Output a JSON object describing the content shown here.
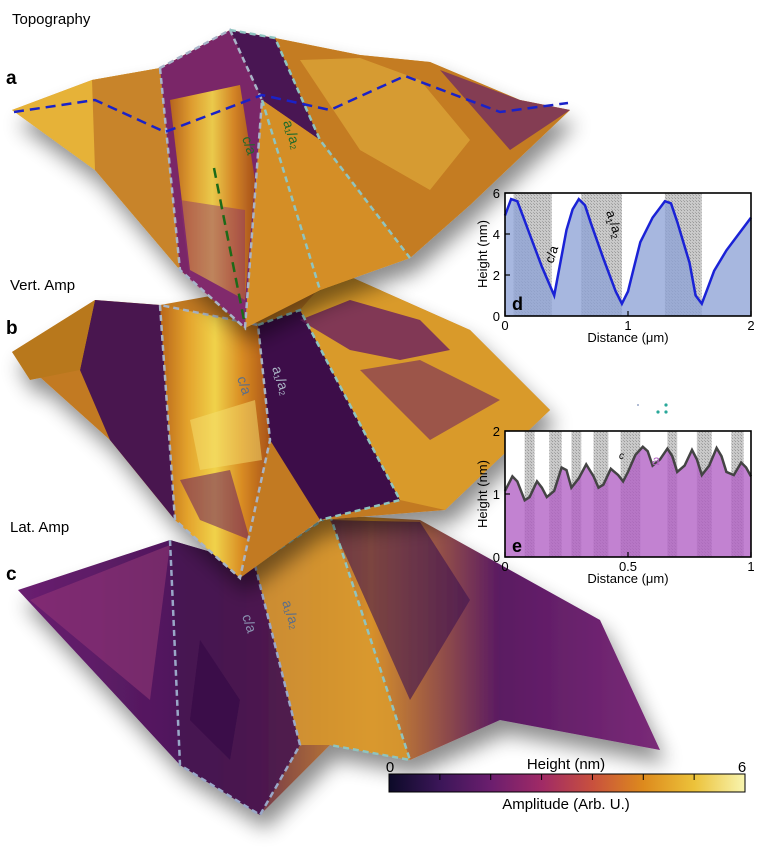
{
  "panels": {
    "a": {
      "letter": "a",
      "title": "Topography",
      "domain_ca": "c/a",
      "domain_a1a2": "a₁/a₂"
    },
    "b": {
      "letter": "b",
      "title": "Vert. Amp",
      "domain_ca": "c/a",
      "domain_a1a2": "a₁/a₂"
    },
    "c": {
      "letter": "c",
      "title": "Lat. Amp",
      "domain_ca": "c/a",
      "domain_a1a2": "a₁/a₂"
    }
  },
  "colorbar": {
    "title": "Height (nm)",
    "subtitle": "Amplitude (Arb. U.)",
    "min_label": "0",
    "max_label": "6",
    "colors": [
      "#0c0a28",
      "#3b1658",
      "#6b1e6e",
      "#a02a66",
      "#c8503e",
      "#dd8a1d",
      "#ecc23a",
      "#f8f5b0"
    ]
  },
  "chart_data": [
    {
      "type": "line",
      "panel_letter": "d",
      "xlabel": "Distance (μm)",
      "ylabel": "Height (nm)",
      "xlim": [
        0,
        2
      ],
      "ylim": [
        0,
        6
      ],
      "xticks": [
        "0",
        "1",
        "2"
      ],
      "yticks": [
        "0",
        "2",
        "4",
        "6"
      ],
      "label_ca": "c/a",
      "label_a": "a",
      "label_sub1": "1",
      "label_sub2": "2",
      "label_sep": "/",
      "line_color": "#1a22d6",
      "fill_color": "#8ea3d6",
      "x": [
        0.0,
        0.05,
        0.1,
        0.15,
        0.2,
        0.3,
        0.4,
        0.5,
        0.55,
        0.6,
        0.65,
        0.7,
        0.8,
        0.9,
        0.95,
        1.0,
        1.05,
        1.1,
        1.2,
        1.3,
        1.35,
        1.4,
        1.5,
        1.55,
        1.6,
        1.65,
        1.7,
        1.8,
        1.9,
        2.0
      ],
      "y": [
        4.9,
        5.7,
        5.6,
        4.8,
        4.0,
        2.4,
        1.0,
        4.2,
        5.2,
        5.7,
        5.4,
        4.5,
        2.8,
        1.2,
        0.6,
        1.2,
        2.4,
        3.6,
        4.8,
        5.6,
        5.5,
        4.6,
        2.6,
        1.0,
        0.6,
        1.4,
        2.2,
        3.2,
        4.0,
        4.8
      ],
      "hatched_x_ranges": [
        [
          0.07,
          0.38
        ],
        [
          0.62,
          0.95
        ],
        [
          1.3,
          1.6
        ]
      ]
    },
    {
      "type": "line",
      "panel_letter": "e",
      "xlabel": "Distance (μm)",
      "ylabel": "Height (nm)",
      "xlim": [
        0,
        1
      ],
      "ylim": [
        0,
        2
      ],
      "xticks": [
        "0",
        "0.5",
        "1"
      ],
      "yticks": [
        "0",
        "1",
        "2"
      ],
      "label_c": "c",
      "label_a": "a",
      "line_color": "#444444",
      "fill_color": "#b15fc4",
      "x": [
        0.0,
        0.03,
        0.05,
        0.08,
        0.1,
        0.13,
        0.15,
        0.17,
        0.2,
        0.23,
        0.25,
        0.27,
        0.3,
        0.33,
        0.36,
        0.38,
        0.4,
        0.43,
        0.46,
        0.48,
        0.5,
        0.53,
        0.56,
        0.58,
        0.6,
        0.63,
        0.66,
        0.68,
        0.7,
        0.73,
        0.76,
        0.78,
        0.8,
        0.83,
        0.86,
        0.88,
        0.9,
        0.93,
        0.96,
        0.98,
        1.0
      ],
      "y": [
        1.05,
        1.28,
        1.2,
        0.9,
        0.95,
        1.2,
        1.1,
        0.95,
        1.05,
        1.42,
        1.38,
        1.1,
        1.25,
        1.47,
        1.28,
        1.1,
        1.15,
        1.4,
        1.3,
        1.2,
        1.35,
        1.62,
        1.75,
        1.68,
        1.45,
        1.55,
        1.72,
        1.6,
        1.35,
        1.45,
        1.7,
        1.55,
        1.3,
        1.45,
        1.73,
        1.6,
        1.35,
        1.3,
        1.5,
        1.42,
        1.28
      ],
      "hatched_x_ranges": [
        [
          0.08,
          0.12
        ],
        [
          0.18,
          0.23
        ],
        [
          0.27,
          0.31
        ],
        [
          0.36,
          0.42
        ],
        [
          0.47,
          0.55
        ],
        [
          0.66,
          0.7
        ],
        [
          0.78,
          0.84
        ],
        [
          0.92,
          0.97
        ]
      ]
    }
  ]
}
